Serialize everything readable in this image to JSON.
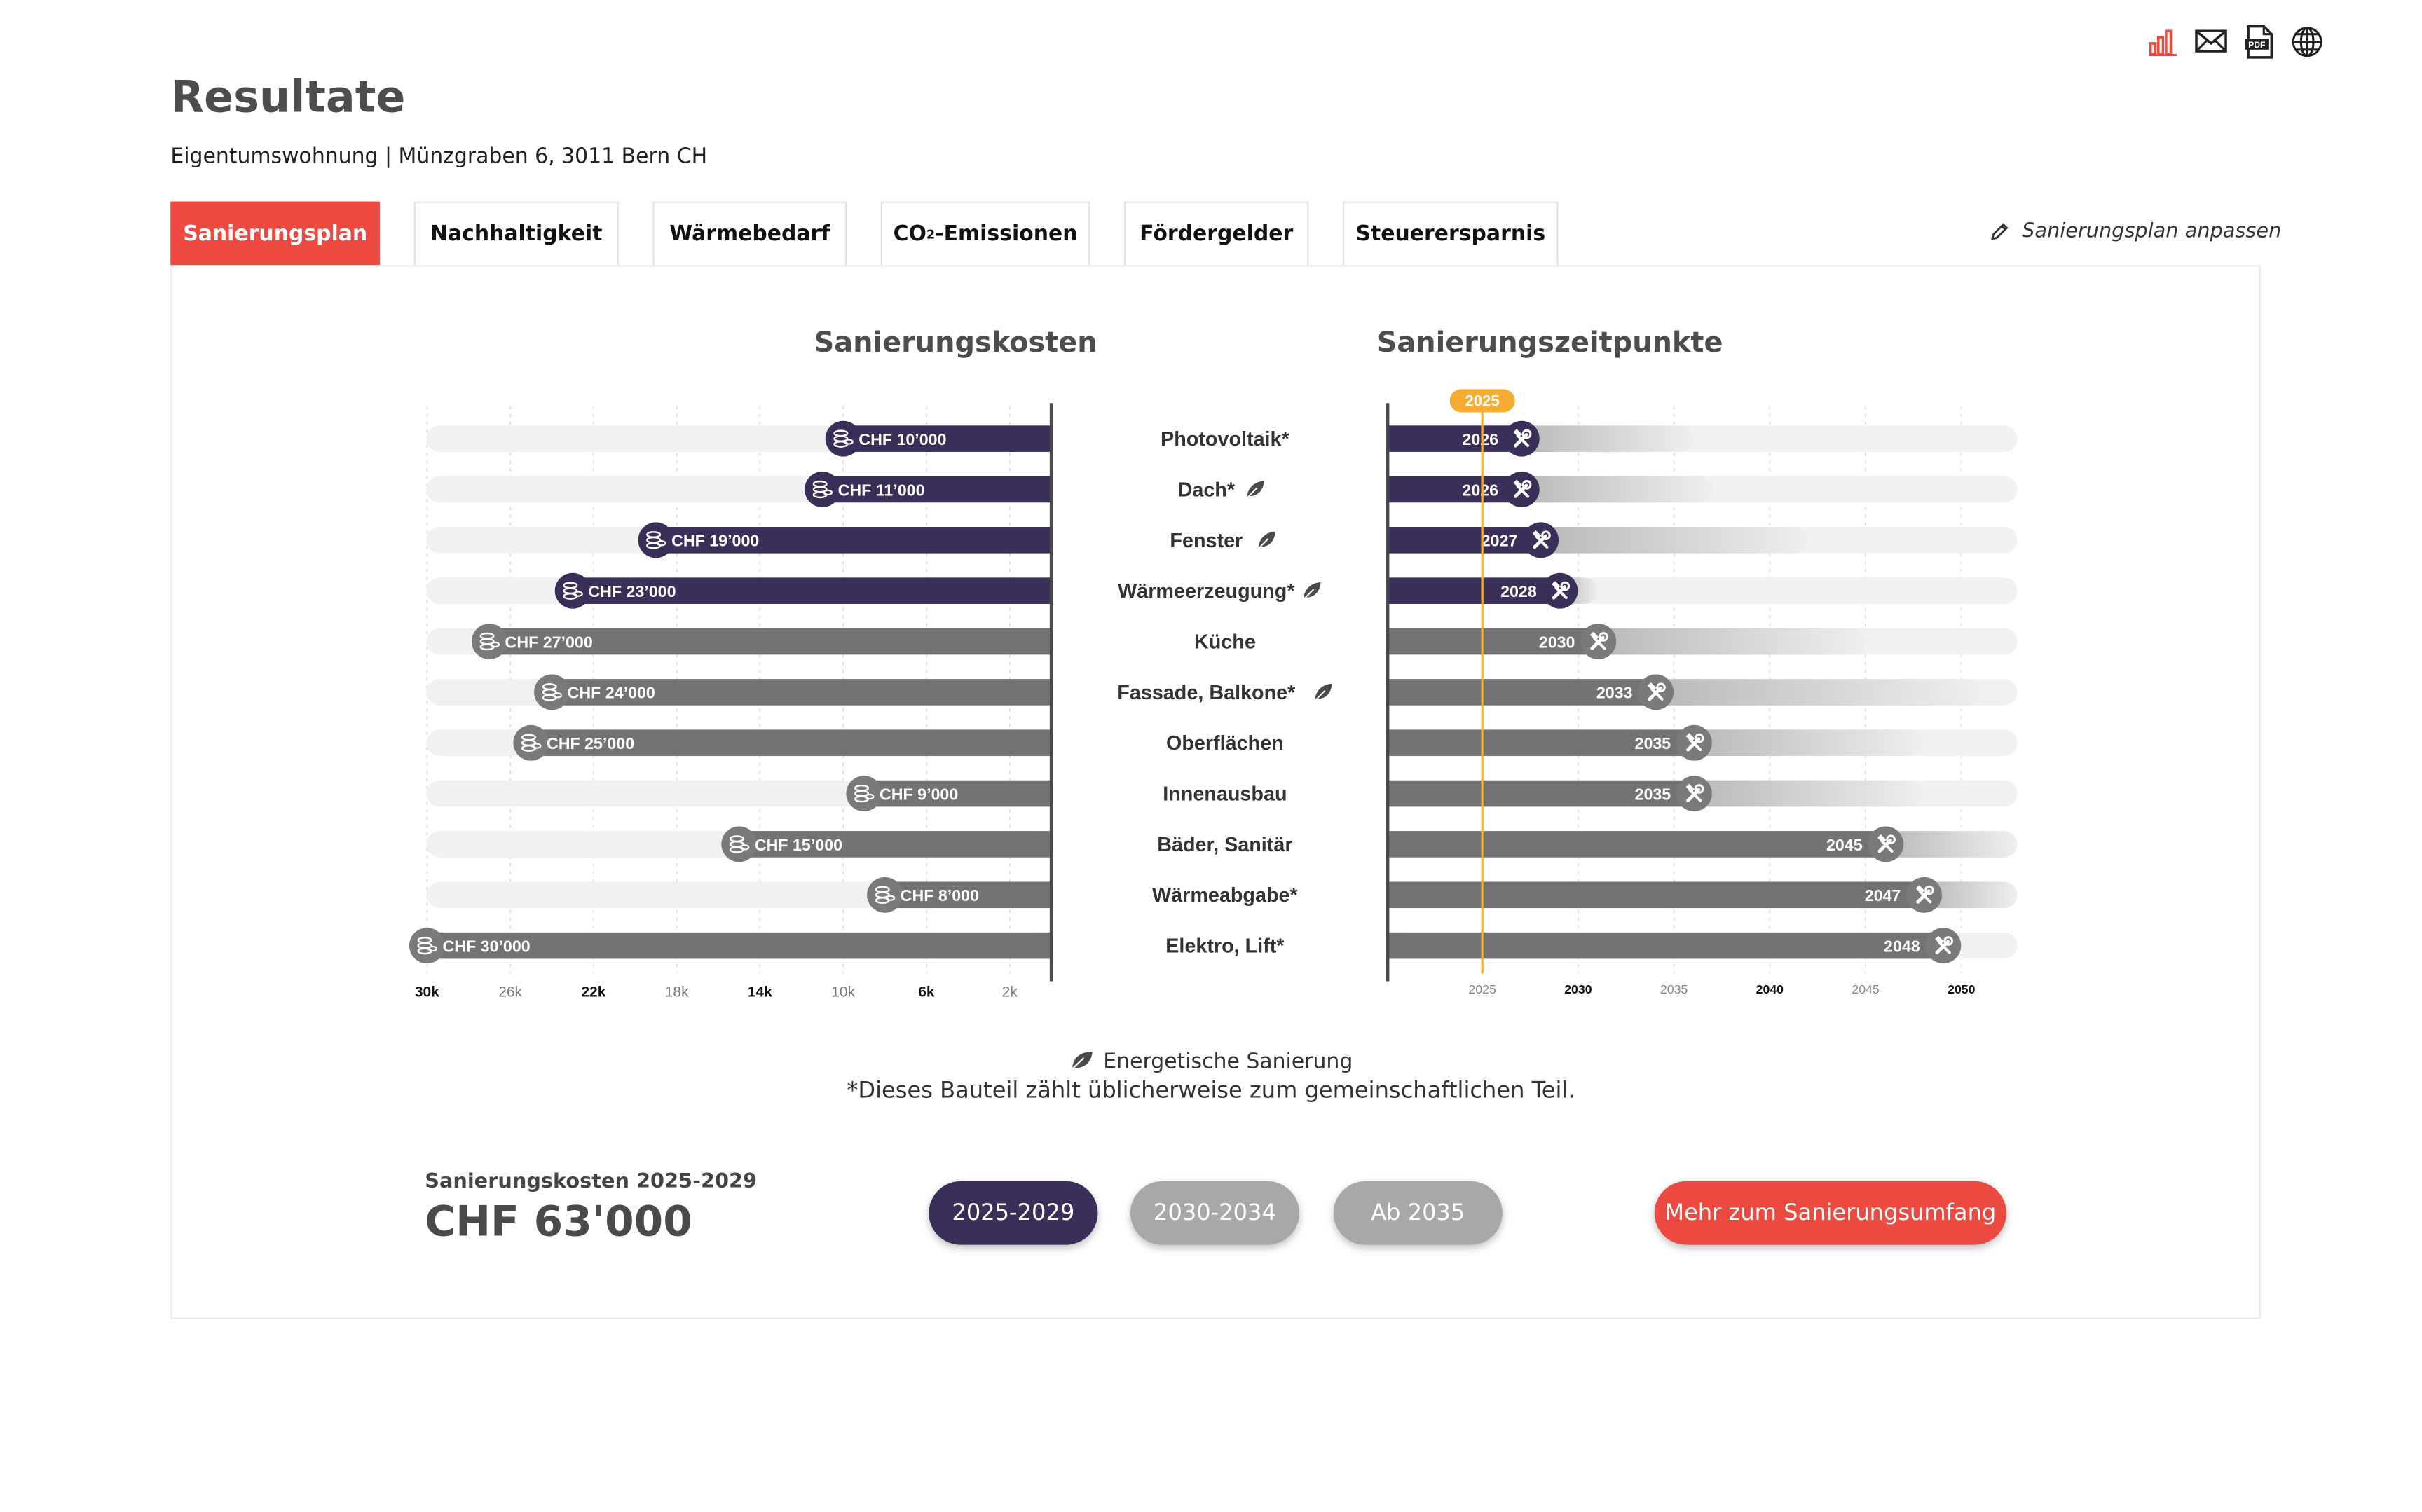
{
  "header": {
    "title": "Resultate",
    "subtitle": "Eigentumswohnung | Münzgraben 6, 3011 Bern CH",
    "tools": [
      {
        "name": "chart-icon"
      },
      {
        "name": "mail-icon"
      },
      {
        "name": "pdf-icon"
      },
      {
        "name": "globe-icon"
      }
    ]
  },
  "tabs": [
    {
      "label": "Sanierungsplan",
      "active": true
    },
    {
      "label": "Nachhaltigkeit"
    },
    {
      "label": "Wärmebedarf"
    },
    {
      "label_main": "CO",
      "label_sub": "2",
      "label_rest": "-Emissionen"
    },
    {
      "label": "Fördergelder"
    },
    {
      "label": "Steuerersparnis"
    }
  ],
  "adjust_link": "Sanierungsplan anpassen",
  "colors": {
    "accent": "#ec4a41",
    "dark_bar": "#3a2f58",
    "gray_bar": "#737373",
    "track": "#f1f1f1",
    "current_year": "#f6ac33"
  },
  "chart_data": {
    "type": "bar",
    "left_title": "Sanierungskosten",
    "right_title": "Sanierungszeitpunkte",
    "categories": [
      "Photovoltaik*",
      "Dach*",
      "Fenster",
      "Wärmeerzeugung*",
      "Küche",
      "Fassade, Balkone*",
      "Oberflächen",
      "Innenausbau",
      "Bäder, Sanitär",
      "Wärmeabgabe*",
      "Elektro, Lift*"
    ],
    "energetic": [
      false,
      true,
      true,
      true,
      false,
      true,
      false,
      false,
      false,
      false,
      false
    ],
    "cost_values": [
      10000,
      11000,
      19000,
      23000,
      27000,
      24000,
      25000,
      9000,
      15000,
      8000,
      30000
    ],
    "cost_labels": [
      "CHF 10’000",
      "CHF 11’000",
      "CHF 19’000",
      "CHF 23’000",
      "CHF 27’000",
      "CHF 24’000",
      "CHF 25’000",
      "CHF 9’000",
      "CHF 15’000",
      "CHF 8’000",
      "CHF 30’000"
    ],
    "years": [
      2026,
      2026,
      2027,
      2028,
      2030,
      2033,
      2035,
      2035,
      2045,
      2047,
      2048
    ],
    "year_ranges_end": [
      2036,
      2037,
      2042,
      2031,
      2045,
      2051,
      2048,
      2048,
      2053,
      2053,
      2049
    ],
    "highlighted": [
      true,
      true,
      true,
      true,
      false,
      false,
      false,
      false,
      false,
      false,
      false
    ],
    "cost_ticks": [
      "30k",
      "26k",
      "22k",
      "18k",
      "14k",
      "10k",
      "6k",
      "2k"
    ],
    "cost_tick_values": [
      30000,
      26000,
      22000,
      18000,
      14000,
      10000,
      6000,
      2000
    ],
    "cost_tick_bold": [
      true,
      false,
      true,
      false,
      true,
      false,
      true,
      false
    ],
    "cost_xlim": [
      0,
      31000
    ],
    "year_ticks": [
      "2025",
      "2030",
      "2035",
      "2040",
      "2045",
      "2050"
    ],
    "year_tick_values": [
      2025,
      2030,
      2035,
      2040,
      2045,
      2050
    ],
    "year_tick_bold": [
      false,
      true,
      false,
      true,
      false,
      true
    ],
    "year_xlim": [
      2020,
      2053
    ],
    "current_year_label": "2025",
    "current_year": 2025
  },
  "legend": {
    "energetic_label": "Energetische Sanierung",
    "footnote": "*Dieses Bauteil zählt üblicherweise zum gemeinschaftlichen Teil."
  },
  "summary": {
    "cost_label": "Sanierungskosten 2025-2029",
    "cost_value": "CHF 63'000"
  },
  "period_buttons": [
    {
      "label": "2025-2029",
      "active": true
    },
    {
      "label": "2030-2034"
    },
    {
      "label": "Ab 2035"
    }
  ],
  "more_button": "Mehr zum Sanierungsumfang"
}
